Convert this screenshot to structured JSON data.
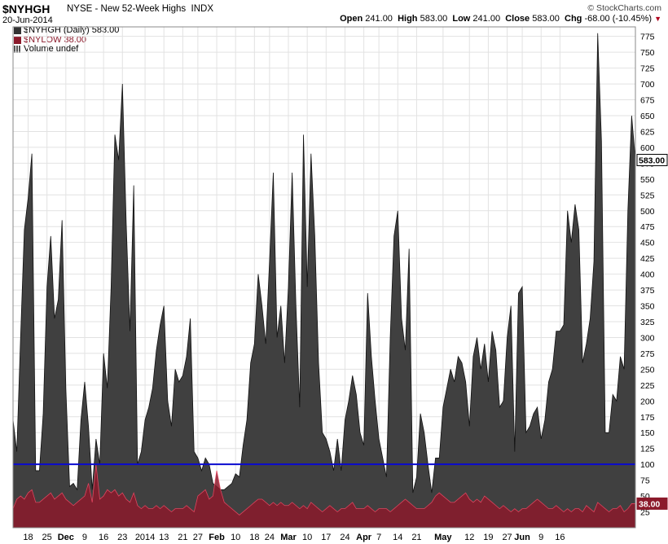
{
  "header": {
    "ticker": "$NYHGH",
    "description": "NYSE - New 52-Week Highs",
    "index_tag": "INDX",
    "date": "20-Jun-2014",
    "credit": "© StockCharts.com",
    "ohlc": {
      "open_label": "Open",
      "open": "241.00",
      "high_label": "High",
      "high": "583.00",
      "low_label": "Low",
      "low": "241.00",
      "close_label": "Close",
      "close": "583.00",
      "chg_label": "Chg",
      "chg": "-68.00 (-10.45%)"
    }
  },
  "legend": [
    {
      "label": "$NYHGH (Daily) 583.00",
      "color": "#333333"
    },
    {
      "label": "$NYLOW 38.00",
      "color": "#8b1a2b"
    },
    {
      "label": "Volume undef",
      "color": "#555555"
    }
  ],
  "badges": {
    "last_high": "583.00",
    "last_low": "38.00"
  },
  "chart_data": {
    "type": "area",
    "ylim": [
      0,
      790
    ],
    "yticks": [
      25,
      50,
      75,
      100,
      125,
      150,
      175,
      200,
      225,
      250,
      275,
      300,
      325,
      350,
      375,
      400,
      425,
      450,
      475,
      500,
      525,
      550,
      575,
      600,
      625,
      650,
      675,
      700,
      725,
      750,
      775
    ],
    "reference_line": 100,
    "x_tick_labels": [
      {
        "label": "18",
        "i": 4
      },
      {
        "label": "25",
        "i": 9
      },
      {
        "label": "Dec",
        "i": 14
      },
      {
        "label": "9",
        "i": 19
      },
      {
        "label": "16",
        "i": 24
      },
      {
        "label": "23",
        "i": 29
      },
      {
        "label": "2014",
        "i": 35
      },
      {
        "label": "13",
        "i": 40
      },
      {
        "label": "21",
        "i": 45
      },
      {
        "label": "27",
        "i": 49
      },
      {
        "label": "Feb",
        "i": 54
      },
      {
        "label": "10",
        "i": 59
      },
      {
        "label": "18",
        "i": 64
      },
      {
        "label": "24",
        "i": 68
      },
      {
        "label": "Mar",
        "i": 73
      },
      {
        "label": "10",
        "i": 78
      },
      {
        "label": "17",
        "i": 83
      },
      {
        "label": "24",
        "i": 88
      },
      {
        "label": "Apr",
        "i": 93
      },
      {
        "label": "7",
        "i": 97
      },
      {
        "label": "14",
        "i": 102
      },
      {
        "label": "21",
        "i": 107
      },
      {
        "label": "May",
        "i": 114
      },
      {
        "label": "12",
        "i": 121
      },
      {
        "label": "19",
        "i": 126
      },
      {
        "label": "27",
        "i": 131
      },
      {
        "label": "Jun",
        "i": 135
      },
      {
        "label": "9",
        "i": 140
      },
      {
        "label": "16",
        "i": 145
      }
    ],
    "series": [
      {
        "name": "$NYHGH",
        "color": "#404040",
        "values": [
          170,
          120,
          300,
          470,
          520,
          590,
          90,
          90,
          180,
          380,
          460,
          330,
          360,
          485,
          220,
          65,
          70,
          60,
          170,
          230,
          160,
          60,
          140,
          100,
          275,
          220,
          380,
          620,
          580,
          700,
          480,
          310,
          540,
          100,
          120,
          170,
          190,
          220,
          280,
          320,
          350,
          200,
          160,
          250,
          230,
          240,
          270,
          330,
          120,
          110,
          90,
          110,
          100,
          70,
          65,
          60,
          60,
          65,
          70,
          85,
          80,
          130,
          170,
          260,
          290,
          400,
          350,
          290,
          420,
          560,
          300,
          350,
          260,
          380,
          560,
          350,
          190,
          620,
          380,
          590,
          460,
          260,
          150,
          140,
          120,
          90,
          140,
          90,
          170,
          200,
          240,
          210,
          150,
          130,
          370,
          270,
          200,
          140,
          110,
          80,
          300,
          460,
          500,
          330,
          280,
          440,
          55,
          80,
          180,
          150,
          100,
          55,
          110,
          110,
          190,
          220,
          250,
          230,
          270,
          260,
          230,
          160,
          270,
          300,
          250,
          290,
          230,
          310,
          280,
          190,
          200,
          300,
          350,
          120,
          370,
          380,
          150,
          160,
          180,
          190,
          140,
          170,
          230,
          250,
          310,
          310,
          320,
          500,
          450,
          510,
          470,
          260,
          290,
          330,
          420,
          780,
          610,
          150,
          150,
          210,
          200,
          270,
          250,
          500,
          650,
          580
        ],
        "last_label": "583.00"
      },
      {
        "name": "$NYLOW",
        "color": "#8b1a2b",
        "values": [
          30,
          45,
          50,
          45,
          55,
          60,
          40,
          40,
          45,
          50,
          55,
          45,
          50,
          55,
          45,
          40,
          35,
          40,
          45,
          50,
          70,
          40,
          100,
          45,
          50,
          60,
          55,
          60,
          50,
          55,
          45,
          40,
          55,
          35,
          30,
          35,
          30,
          30,
          35,
          30,
          35,
          30,
          25,
          30,
          30,
          30,
          35,
          30,
          25,
          50,
          55,
          60,
          45,
          50,
          90,
          60,
          40,
          35,
          30,
          25,
          20,
          25,
          30,
          35,
          40,
          45,
          45,
          40,
          35,
          40,
          35,
          40,
          35,
          35,
          40,
          35,
          30,
          35,
          30,
          40,
          35,
          30,
          25,
          30,
          35,
          30,
          25,
          30,
          30,
          35,
          40,
          30,
          30,
          30,
          35,
          30,
          25,
          30,
          30,
          30,
          25,
          30,
          35,
          40,
          45,
          40,
          35,
          30,
          30,
          30,
          35,
          40,
          50,
          55,
          50,
          45,
          40,
          40,
          45,
          50,
          55,
          45,
          40,
          45,
          40,
          50,
          45,
          40,
          35,
          30,
          35,
          30,
          25,
          30,
          25,
          30,
          30,
          35,
          40,
          45,
          40,
          35,
          30,
          30,
          35,
          30,
          25,
          30,
          25,
          30,
          30,
          25,
          35,
          30,
          25,
          40,
          35,
          30,
          25,
          30,
          30,
          35,
          25,
          30,
          38,
          38
        ],
        "last_label": "38.00"
      }
    ]
  }
}
